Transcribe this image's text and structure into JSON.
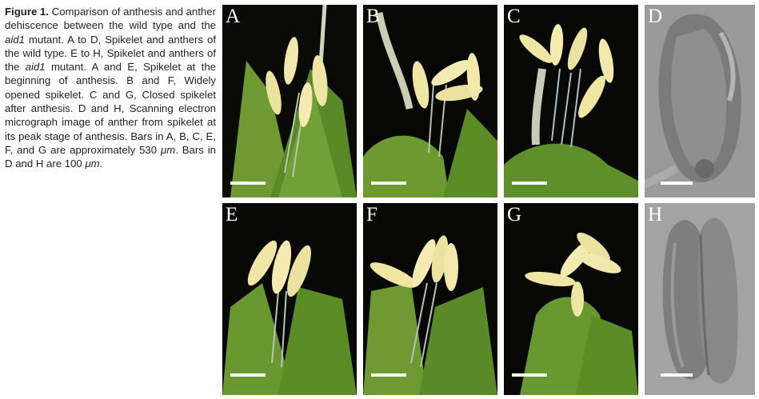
{
  "caption": {
    "figure_label": "Figure 1.",
    "t1": " Comparison of anthesis and anther dehiscence between the wild type and the ",
    "mutant1": "aid1",
    "t2": " mutant. A to D, Spikelet and anthers of the wild type. E to H, Spikelet and anthers of the ",
    "mutant2": "aid1",
    "t3": " mutant. A and E, Spikelet at the beginning of anthesis. B and F, Widely opened spikelet. C and G, Closed spikelet after anthesis. D and H, Scanning electron micrograph image of anther from spikelet at its peak stage of anthesis. Bars in A, B, C, E, F, and G are approximately 530 ",
    "unit1": "μm",
    "t4": ". Bars in D and H are 100 ",
    "unit2": "μm",
    "t5": "."
  },
  "panels": {
    "A": "A",
    "B": "B",
    "C": "C",
    "D": "D",
    "E": "E",
    "F": "F",
    "G": "G",
    "H": "H"
  },
  "colors": {
    "background": "#ffffff",
    "photo_bg": "#000000",
    "glume_green": "#5f8f2a",
    "anther_cream": "#efe6a4",
    "sem_gray": "#8a8a8a",
    "caption_text": "#231f20"
  }
}
